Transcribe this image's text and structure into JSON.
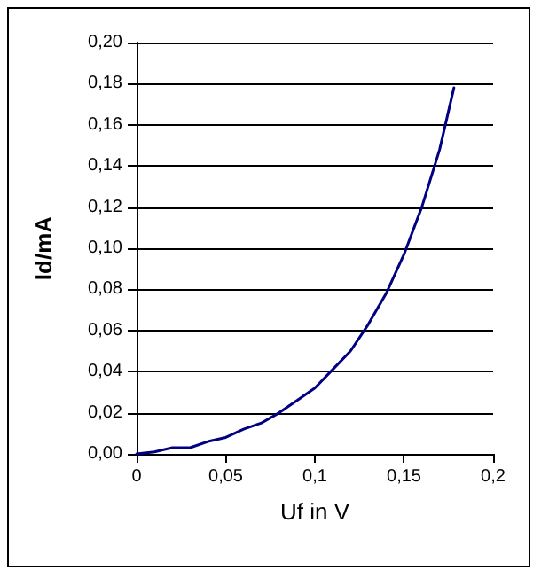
{
  "chart_data": {
    "type": "line",
    "xlabel": "Uf in V",
    "ylabel": "Id/mA",
    "x": [
      0,
      0.01,
      0.02,
      0.03,
      0.04,
      0.05,
      0.06,
      0.07,
      0.08,
      0.09,
      0.1,
      0.11,
      0.12,
      0.13,
      0.14,
      0.15,
      0.16,
      0.17,
      0.178
    ],
    "series": [
      {
        "color": "#000080",
        "values": [
          0,
          0.001,
          0.003,
          0.003,
          0.006,
          0.008,
          0.012,
          0.015,
          0.02,
          0.026,
          0.032,
          0.041,
          0.05,
          0.063,
          0.078,
          0.097,
          0.12,
          0.148,
          0.178
        ]
      }
    ],
    "xlim": [
      0,
      0.2
    ],
    "xticks": [
      0,
      {
        "value": 0.05,
        "label": "0,05"
      },
      {
        "value": 0.1,
        "label": "0,1"
      },
      {
        "value": 0.15,
        "label": "0,15"
      },
      {
        "value": 0.2,
        "label": "0,2"
      }
    ],
    "ylim": [
      0,
      0.2
    ],
    "yticks": [
      {
        "value": 0,
        "label": "0,00"
      },
      {
        "value": 0.02,
        "label": "0,02"
      },
      {
        "value": 0.04,
        "label": "0,04"
      },
      {
        "value": 0.06,
        "label": "0,06"
      },
      {
        "value": 0.08,
        "label": "0,08"
      },
      {
        "value": 0.1,
        "label": "0,10"
      },
      {
        "value": 0.12,
        "label": "0,12"
      },
      {
        "value": 0.14,
        "label": "0,14"
      },
      {
        "value": 0.16,
        "label": "0,16"
      },
      {
        "value": 0.18,
        "label": "0,18"
      },
      {
        "value": 0.2,
        "label": "0,20"
      }
    ],
    "grid": "y",
    "marker": "none",
    "line_style": "solid"
  }
}
